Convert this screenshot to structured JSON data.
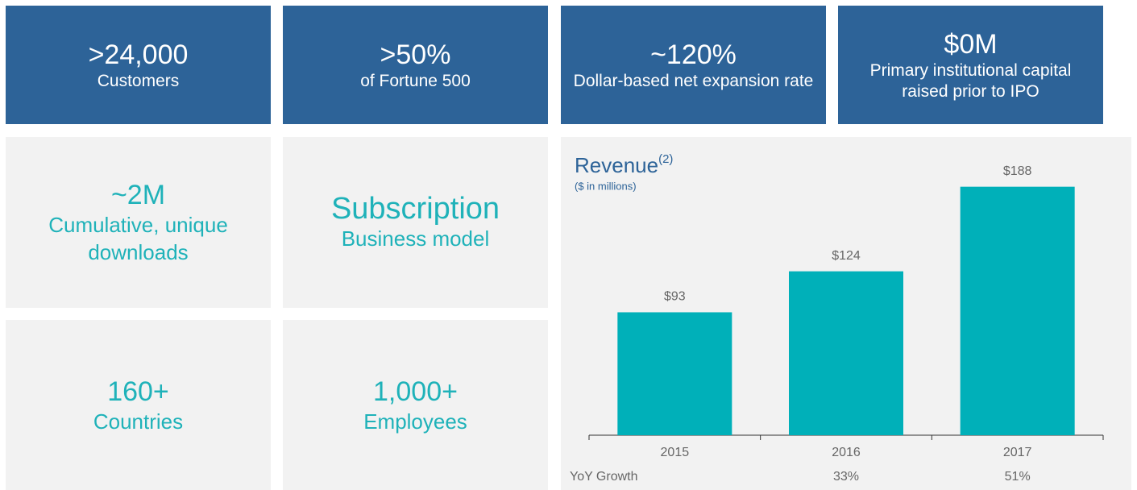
{
  "top_tiles": [
    {
      "value": ">24,000",
      "label": "Customers"
    },
    {
      "value": ">50%",
      "label": "of Fortune 500"
    },
    {
      "value": "~120%",
      "label": "Dollar-based net expansion rate"
    },
    {
      "value": "$0M",
      "label": "Primary institutional capital raised prior to IPO"
    }
  ],
  "gray_tiles": [
    {
      "value": "~2M",
      "label": "Cumulative, unique downloads"
    },
    {
      "value": "Subscription",
      "label": "Business model"
    },
    {
      "value": "160+",
      "label": "Countries"
    },
    {
      "value": "1,000+",
      "label": "Employees"
    }
  ],
  "chart_data": {
    "type": "bar",
    "title": "Revenue",
    "title_superscript": "(2)",
    "subtitle": "($ in millions)",
    "categories": [
      "2015",
      "2016",
      "2017"
    ],
    "values": [
      93,
      124,
      188
    ],
    "value_labels": [
      "$93",
      "$124",
      "$188"
    ],
    "color": "#00b0b9",
    "ylim": [
      0,
      200
    ],
    "growth": {
      "label": "YoY Growth",
      "values": [
        null,
        33,
        51
      ],
      "value_labels": [
        null,
        "33%",
        "51%"
      ]
    }
  }
}
